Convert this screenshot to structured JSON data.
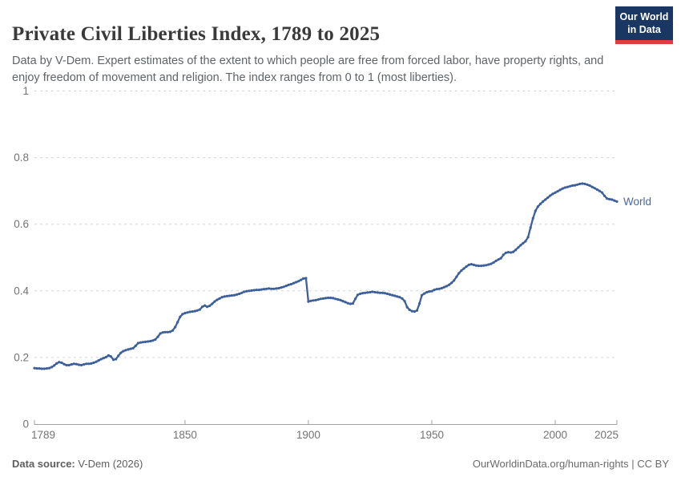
{
  "header": {
    "title": "Private Civil Liberties Index, 1789 to 2025",
    "subtitle": "Data by V-Dem. Expert estimates of the extent to which people are free from forced labor, have property rights, and enjoy freedom of movement and religion. The index ranges from 0 to 1 (most liberties).",
    "logo": {
      "line1": "Our World",
      "line2": "in Data"
    }
  },
  "footer": {
    "source_label": "Data source:",
    "source_value": " V-Dem (2026)",
    "attribution": "OurWorldinData.org/human-rights | CC BY"
  },
  "chart_data": {
    "type": "line",
    "title": "Private Civil Liberties Index, 1789 to 2025",
    "xlabel": "",
    "ylabel": "",
    "x_range": [
      1789,
      2025
    ],
    "ylim": [
      0,
      1
    ],
    "x_ticks": [
      1789,
      1850,
      1900,
      1950,
      2000,
      2025
    ],
    "y_ticks": [
      0,
      0.2,
      0.4,
      0.6,
      0.8,
      1
    ],
    "grid": "horizontal-dashed",
    "legend": "series-end-label",
    "colors": {
      "line": "#3d5f9a",
      "series_label": "#4a67a0",
      "grid": "#d5d5d5",
      "axis": "#a1a1a1",
      "tick_label": "#737373"
    },
    "series": [
      {
        "name": "World",
        "color": "#3d5f9a",
        "points": [
          [
            1789,
            0.168
          ],
          [
            1790,
            0.167
          ],
          [
            1791,
            0.167
          ],
          [
            1792,
            0.166
          ],
          [
            1793,
            0.166
          ],
          [
            1794,
            0.167
          ],
          [
            1795,
            0.168
          ],
          [
            1796,
            0.171
          ],
          [
            1797,
            0.176
          ],
          [
            1798,
            0.182
          ],
          [
            1799,
            0.186
          ],
          [
            1800,
            0.184
          ],
          [
            1801,
            0.18
          ],
          [
            1802,
            0.177
          ],
          [
            1803,
            0.177
          ],
          [
            1804,
            0.179
          ],
          [
            1805,
            0.181
          ],
          [
            1806,
            0.18
          ],
          [
            1807,
            0.178
          ],
          [
            1808,
            0.177
          ],
          [
            1809,
            0.179
          ],
          [
            1810,
            0.181
          ],
          [
            1811,
            0.181
          ],
          [
            1812,
            0.182
          ],
          [
            1813,
            0.184
          ],
          [
            1814,
            0.187
          ],
          [
            1815,
            0.191
          ],
          [
            1816,
            0.195
          ],
          [
            1817,
            0.198
          ],
          [
            1818,
            0.201
          ],
          [
            1819,
            0.206
          ],
          [
            1820,
            0.203
          ],
          [
            1821,
            0.193
          ],
          [
            1822,
            0.195
          ],
          [
            1823,
            0.205
          ],
          [
            1824,
            0.214
          ],
          [
            1825,
            0.219
          ],
          [
            1826,
            0.222
          ],
          [
            1827,
            0.224
          ],
          [
            1828,
            0.226
          ],
          [
            1829,
            0.228
          ],
          [
            1830,
            0.235
          ],
          [
            1831,
            0.243
          ],
          [
            1832,
            0.245
          ],
          [
            1833,
            0.246
          ],
          [
            1834,
            0.247
          ],
          [
            1835,
            0.248
          ],
          [
            1836,
            0.249
          ],
          [
            1837,
            0.251
          ],
          [
            1838,
            0.254
          ],
          [
            1839,
            0.262
          ],
          [
            1840,
            0.272
          ],
          [
            1841,
            0.275
          ],
          [
            1842,
            0.276
          ],
          [
            1843,
            0.276
          ],
          [
            1844,
            0.277
          ],
          [
            1845,
            0.281
          ],
          [
            1846,
            0.291
          ],
          [
            1847,
            0.306
          ],
          [
            1848,
            0.322
          ],
          [
            1849,
            0.33
          ],
          [
            1850,
            0.333
          ],
          [
            1851,
            0.335
          ],
          [
            1852,
            0.337
          ],
          [
            1853,
            0.338
          ],
          [
            1854,
            0.339
          ],
          [
            1855,
            0.341
          ],
          [
            1856,
            0.344
          ],
          [
            1857,
            0.352
          ],
          [
            1858,
            0.356
          ],
          [
            1859,
            0.352
          ],
          [
            1860,
            0.355
          ],
          [
            1861,
            0.361
          ],
          [
            1862,
            0.368
          ],
          [
            1863,
            0.373
          ],
          [
            1864,
            0.377
          ],
          [
            1865,
            0.381
          ],
          [
            1866,
            0.383
          ],
          [
            1867,
            0.384
          ],
          [
            1868,
            0.385
          ],
          [
            1869,
            0.386
          ],
          [
            1870,
            0.387
          ],
          [
            1871,
            0.389
          ],
          [
            1872,
            0.391
          ],
          [
            1873,
            0.394
          ],
          [
            1874,
            0.397
          ],
          [
            1875,
            0.399
          ],
          [
            1876,
            0.4
          ],
          [
            1877,
            0.401
          ],
          [
            1878,
            0.402
          ],
          [
            1879,
            0.403
          ],
          [
            1880,
            0.403
          ],
          [
            1881,
            0.404
          ],
          [
            1882,
            0.405
          ],
          [
            1883,
            0.406
          ],
          [
            1884,
            0.407
          ],
          [
            1885,
            0.406
          ],
          [
            1886,
            0.406
          ],
          [
            1887,
            0.407
          ],
          [
            1888,
            0.408
          ],
          [
            1889,
            0.41
          ],
          [
            1890,
            0.412
          ],
          [
            1891,
            0.415
          ],
          [
            1892,
            0.418
          ],
          [
            1893,
            0.42
          ],
          [
            1894,
            0.423
          ],
          [
            1895,
            0.426
          ],
          [
            1896,
            0.429
          ],
          [
            1897,
            0.433
          ],
          [
            1898,
            0.437
          ],
          [
            1899,
            0.438
          ],
          [
            1900,
            0.368
          ],
          [
            1901,
            0.37
          ],
          [
            1902,
            0.371
          ],
          [
            1903,
            0.372
          ],
          [
            1904,
            0.374
          ],
          [
            1905,
            0.376
          ],
          [
            1906,
            0.377
          ],
          [
            1907,
            0.378
          ],
          [
            1908,
            0.379
          ],
          [
            1909,
            0.379
          ],
          [
            1910,
            0.378
          ],
          [
            1911,
            0.376
          ],
          [
            1912,
            0.374
          ],
          [
            1913,
            0.372
          ],
          [
            1914,
            0.369
          ],
          [
            1915,
            0.366
          ],
          [
            1916,
            0.363
          ],
          [
            1917,
            0.361
          ],
          [
            1918,
            0.362
          ],
          [
            1919,
            0.376
          ],
          [
            1920,
            0.388
          ],
          [
            1921,
            0.391
          ],
          [
            1922,
            0.393
          ],
          [
            1923,
            0.394
          ],
          [
            1924,
            0.395
          ],
          [
            1925,
            0.396
          ],
          [
            1926,
            0.397
          ],
          [
            1927,
            0.396
          ],
          [
            1928,
            0.395
          ],
          [
            1929,
            0.394
          ],
          [
            1930,
            0.394
          ],
          [
            1931,
            0.393
          ],
          [
            1932,
            0.391
          ],
          [
            1933,
            0.389
          ],
          [
            1934,
            0.387
          ],
          [
            1935,
            0.385
          ],
          [
            1936,
            0.383
          ],
          [
            1937,
            0.381
          ],
          [
            1938,
            0.377
          ],
          [
            1939,
            0.369
          ],
          [
            1940,
            0.351
          ],
          [
            1941,
            0.343
          ],
          [
            1942,
            0.339
          ],
          [
            1943,
            0.338
          ],
          [
            1944,
            0.341
          ],
          [
            1945,
            0.362
          ],
          [
            1946,
            0.387
          ],
          [
            1947,
            0.392
          ],
          [
            1948,
            0.396
          ],
          [
            1949,
            0.398
          ],
          [
            1950,
            0.399
          ],
          [
            1951,
            0.403
          ],
          [
            1952,
            0.405
          ],
          [
            1953,
            0.406
          ],
          [
            1954,
            0.408
          ],
          [
            1955,
            0.411
          ],
          [
            1956,
            0.414
          ],
          [
            1957,
            0.418
          ],
          [
            1958,
            0.424
          ],
          [
            1959,
            0.431
          ],
          [
            1960,
            0.442
          ],
          [
            1961,
            0.453
          ],
          [
            1962,
            0.461
          ],
          [
            1963,
            0.467
          ],
          [
            1964,
            0.473
          ],
          [
            1965,
            0.478
          ],
          [
            1966,
            0.48
          ],
          [
            1967,
            0.478
          ],
          [
            1968,
            0.476
          ],
          [
            1969,
            0.475
          ],
          [
            1970,
            0.475
          ],
          [
            1971,
            0.476
          ],
          [
            1972,
            0.477
          ],
          [
            1973,
            0.479
          ],
          [
            1974,
            0.481
          ],
          [
            1975,
            0.485
          ],
          [
            1976,
            0.49
          ],
          [
            1977,
            0.494
          ],
          [
            1978,
            0.498
          ],
          [
            1979,
            0.508
          ],
          [
            1980,
            0.514
          ],
          [
            1981,
            0.516
          ],
          [
            1982,
            0.515
          ],
          [
            1983,
            0.517
          ],
          [
            1984,
            0.523
          ],
          [
            1985,
            0.53
          ],
          [
            1986,
            0.537
          ],
          [
            1987,
            0.543
          ],
          [
            1988,
            0.549
          ],
          [
            1989,
            0.561
          ],
          [
            1990,
            0.59
          ],
          [
            1991,
            0.618
          ],
          [
            1992,
            0.64
          ],
          [
            1993,
            0.653
          ],
          [
            1994,
            0.661
          ],
          [
            1995,
            0.668
          ],
          [
            1996,
            0.674
          ],
          [
            1997,
            0.68
          ],
          [
            1998,
            0.686
          ],
          [
            1999,
            0.691
          ],
          [
            2000,
            0.695
          ],
          [
            2001,
            0.699
          ],
          [
            2002,
            0.703
          ],
          [
            2003,
            0.707
          ],
          [
            2004,
            0.71
          ],
          [
            2005,
            0.712
          ],
          [
            2006,
            0.714
          ],
          [
            2007,
            0.716
          ],
          [
            2008,
            0.717
          ],
          [
            2009,
            0.719
          ],
          [
            2010,
            0.721
          ],
          [
            2011,
            0.722
          ],
          [
            2012,
            0.721
          ],
          [
            2013,
            0.719
          ],
          [
            2014,
            0.716
          ],
          [
            2015,
            0.712
          ],
          [
            2016,
            0.708
          ],
          [
            2017,
            0.704
          ],
          [
            2018,
            0.7
          ],
          [
            2019,
            0.695
          ],
          [
            2020,
            0.685
          ],
          [
            2021,
            0.677
          ],
          [
            2022,
            0.675
          ],
          [
            2023,
            0.674
          ],
          [
            2024,
            0.671
          ],
          [
            2025,
            0.668
          ]
        ]
      }
    ]
  }
}
